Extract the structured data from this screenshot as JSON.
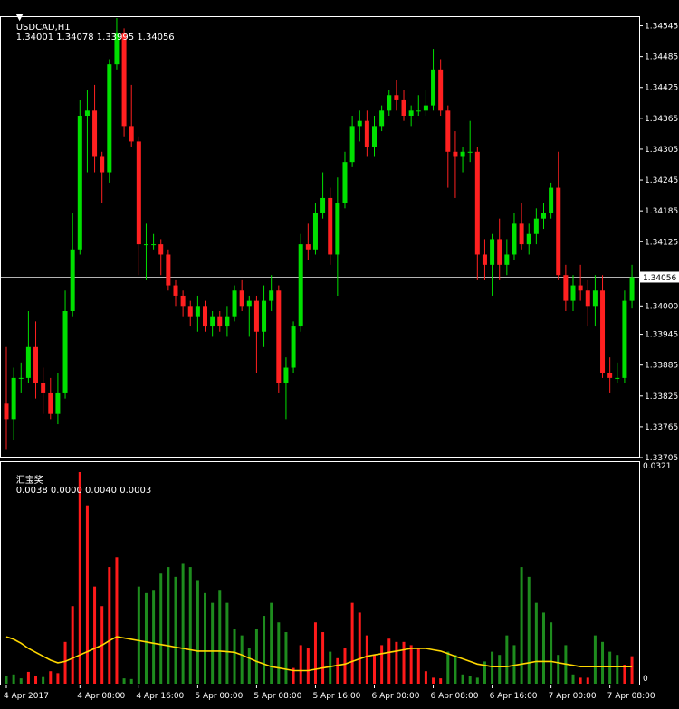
{
  "header": {
    "symbol": "USDCAD,H1",
    "ohlc": "1.34001 1.34078 1.33995 1.34056"
  },
  "indicator": {
    "title": "汇宝奖",
    "values": "0.0038 0.0000 0.0040 0.0003",
    "scale_max": "0.0321",
    "scale_zero": "0"
  },
  "colors": {
    "background": "#000000",
    "bull": "#00e000",
    "bear": "#ff2020",
    "bull_hist": "#1e8c1e",
    "bear_hist": "#ff1a1a",
    "signal": "#ffd700",
    "price_line": "#b4b4b4"
  },
  "chart_data": [
    {
      "type": "candlestick",
      "symbol": "USDCAD",
      "timeframe": "H1",
      "current_price": 1.34056,
      "current_price_label": "1.34056",
      "ylim": [
        1.33705,
        1.3456
      ],
      "y_ticks": [
        {
          "value": 1.34545,
          "label": "1.34545"
        },
        {
          "value": 1.34485,
          "label": "1.34485"
        },
        {
          "value": 1.34425,
          "label": "1.34425"
        },
        {
          "value": 1.34365,
          "label": "1.34365"
        },
        {
          "value": 1.34305,
          "label": "1.34305"
        },
        {
          "value": 1.34245,
          "label": "1.34245"
        },
        {
          "value": 1.34185,
          "label": "1.34185"
        },
        {
          "value": 1.34125,
          "label": "1.34125"
        },
        {
          "value": 1.34,
          "label": "1.34000"
        },
        {
          "value": 1.33945,
          "label": "1.33945"
        },
        {
          "value": 1.33885,
          "label": "1.33885"
        },
        {
          "value": 1.33825,
          "label": "1.33825"
        },
        {
          "value": 1.33765,
          "label": "1.33765"
        },
        {
          "value": 1.33705,
          "label": "1.33705"
        }
      ],
      "x_ticks": [
        {
          "index": 0,
          "label": "4 Apr 2017"
        },
        {
          "index": 10,
          "label": "4 Apr 08:00"
        },
        {
          "index": 18,
          "label": "4 Apr 16:00"
        },
        {
          "index": 26,
          "label": "5 Apr 00:00"
        },
        {
          "index": 34,
          "label": "5 Apr 08:00"
        },
        {
          "index": 42,
          "label": "5 Apr 16:00"
        },
        {
          "index": 50,
          "label": "6 Apr 00:00"
        },
        {
          "index": 58,
          "label": "6 Apr 08:00"
        },
        {
          "index": 66,
          "label": "6 Apr 16:00"
        },
        {
          "index": 74,
          "label": "7 Apr 00:00"
        },
        {
          "index": 82,
          "label": "7 Apr 08:00"
        }
      ],
      "candles": [
        {
          "o": 1.3381,
          "h": 1.3392,
          "l": 1.3372,
          "c": 1.3378
        },
        {
          "o": 1.3378,
          "h": 1.3388,
          "l": 1.3374,
          "c": 1.3386
        },
        {
          "o": 1.3386,
          "h": 1.3389,
          "l": 1.3383,
          "c": 1.3386
        },
        {
          "o": 1.3386,
          "h": 1.3399,
          "l": 1.3385,
          "c": 1.3392
        },
        {
          "o": 1.3392,
          "h": 1.3397,
          "l": 1.3382,
          "c": 1.3385
        },
        {
          "o": 1.3385,
          "h": 1.3388,
          "l": 1.3379,
          "c": 1.3383
        },
        {
          "o": 1.3383,
          "h": 1.3386,
          "l": 1.3378,
          "c": 1.3379
        },
        {
          "o": 1.3379,
          "h": 1.3387,
          "l": 1.3377,
          "c": 1.3383
        },
        {
          "o": 1.3383,
          "h": 1.3403,
          "l": 1.3382,
          "c": 1.3399
        },
        {
          "o": 1.3399,
          "h": 1.3418,
          "l": 1.3398,
          "c": 1.3411
        },
        {
          "o": 1.3411,
          "h": 1.344,
          "l": 1.341,
          "c": 1.3437
        },
        {
          "o": 1.3437,
          "h": 1.3442,
          "l": 1.3426,
          "c": 1.3438
        },
        {
          "o": 1.3438,
          "h": 1.3443,
          "l": 1.3426,
          "c": 1.3429
        },
        {
          "o": 1.3429,
          "h": 1.343,
          "l": 1.342,
          "c": 1.3426
        },
        {
          "o": 1.3426,
          "h": 1.3448,
          "l": 1.3424,
          "c": 1.3447
        },
        {
          "o": 1.3447,
          "h": 1.3456,
          "l": 1.3446,
          "c": 1.3453
        },
        {
          "o": 1.3453,
          "h": 1.3454,
          "l": 1.3433,
          "c": 1.3435
        },
        {
          "o": 1.3435,
          "h": 1.3443,
          "l": 1.3431,
          "c": 1.3432
        },
        {
          "o": 1.3432,
          "h": 1.3433,
          "l": 1.3406,
          "c": 1.3412
        },
        {
          "o": 1.3412,
          "h": 1.3416,
          "l": 1.3405,
          "c": 1.3412
        },
        {
          "o": 1.3412,
          "h": 1.3414,
          "l": 1.3411,
          "c": 1.3412
        },
        {
          "o": 1.3412,
          "h": 1.3413,
          "l": 1.3406,
          "c": 1.341
        },
        {
          "o": 1.341,
          "h": 1.3411,
          "l": 1.3403,
          "c": 1.3404
        },
        {
          "o": 1.3404,
          "h": 1.3405,
          "l": 1.34,
          "c": 1.3402
        },
        {
          "o": 1.3402,
          "h": 1.3403,
          "l": 1.3398,
          "c": 1.34
        },
        {
          "o": 1.34,
          "h": 1.3401,
          "l": 1.3396,
          "c": 1.3398
        },
        {
          "o": 1.3398,
          "h": 1.3402,
          "l": 1.3395,
          "c": 1.34
        },
        {
          "o": 1.34,
          "h": 1.3401,
          "l": 1.3395,
          "c": 1.3396
        },
        {
          "o": 1.3396,
          "h": 1.3399,
          "l": 1.3394,
          "c": 1.3398
        },
        {
          "o": 1.3398,
          "h": 1.3399,
          "l": 1.3395,
          "c": 1.3396
        },
        {
          "o": 1.3396,
          "h": 1.34,
          "l": 1.3394,
          "c": 1.3398
        },
        {
          "o": 1.3398,
          "h": 1.3404,
          "l": 1.3397,
          "c": 1.3403
        },
        {
          "o": 1.3403,
          "h": 1.3405,
          "l": 1.3399,
          "c": 1.34
        },
        {
          "o": 1.34,
          "h": 1.3402,
          "l": 1.3394,
          "c": 1.3401
        },
        {
          "o": 1.3401,
          "h": 1.3402,
          "l": 1.3387,
          "c": 1.3395
        },
        {
          "o": 1.3395,
          "h": 1.3404,
          "l": 1.3392,
          "c": 1.3401
        },
        {
          "o": 1.3401,
          "h": 1.3406,
          "l": 1.3399,
          "c": 1.3403
        },
        {
          "o": 1.3403,
          "h": 1.3404,
          "l": 1.3383,
          "c": 1.3385
        },
        {
          "o": 1.3385,
          "h": 1.339,
          "l": 1.3378,
          "c": 1.3388
        },
        {
          "o": 1.3388,
          "h": 1.3397,
          "l": 1.3387,
          "c": 1.3396
        },
        {
          "o": 1.3396,
          "h": 1.3414,
          "l": 1.3395,
          "c": 1.3412
        },
        {
          "o": 1.3412,
          "h": 1.3416,
          "l": 1.3409,
          "c": 1.3411
        },
        {
          "o": 1.3411,
          "h": 1.342,
          "l": 1.341,
          "c": 1.3418
        },
        {
          "o": 1.3418,
          "h": 1.3426,
          "l": 1.3417,
          "c": 1.3421
        },
        {
          "o": 1.3421,
          "h": 1.3423,
          "l": 1.3408,
          "c": 1.341
        },
        {
          "o": 1.341,
          "h": 1.3425,
          "l": 1.3402,
          "c": 1.342
        },
        {
          "o": 1.342,
          "h": 1.343,
          "l": 1.3419,
          "c": 1.3428
        },
        {
          "o": 1.3428,
          "h": 1.3437,
          "l": 1.3427,
          "c": 1.3435
        },
        {
          "o": 1.3435,
          "h": 1.3438,
          "l": 1.3432,
          "c": 1.3436
        },
        {
          "o": 1.3436,
          "h": 1.3438,
          "l": 1.3429,
          "c": 1.3431
        },
        {
          "o": 1.3431,
          "h": 1.3437,
          "l": 1.3429,
          "c": 1.3435
        },
        {
          "o": 1.3435,
          "h": 1.3439,
          "l": 1.3434,
          "c": 1.3438
        },
        {
          "o": 1.3438,
          "h": 1.3442,
          "l": 1.3437,
          "c": 1.3441
        },
        {
          "o": 1.3441,
          "h": 1.3444,
          "l": 1.3438,
          "c": 1.344
        },
        {
          "o": 1.344,
          "h": 1.3442,
          "l": 1.3436,
          "c": 1.3437
        },
        {
          "o": 1.3437,
          "h": 1.3439,
          "l": 1.3435,
          "c": 1.3438
        },
        {
          "o": 1.3438,
          "h": 1.3441,
          "l": 1.3437,
          "c": 1.3438
        },
        {
          "o": 1.3438,
          "h": 1.3442,
          "l": 1.3437,
          "c": 1.3439
        },
        {
          "o": 1.3439,
          "h": 1.345,
          "l": 1.3438,
          "c": 1.3446
        },
        {
          "o": 1.3446,
          "h": 1.3448,
          "l": 1.3437,
          "c": 1.3438
        },
        {
          "o": 1.3438,
          "h": 1.3439,
          "l": 1.3423,
          "c": 1.343
        },
        {
          "o": 1.343,
          "h": 1.3434,
          "l": 1.3421,
          "c": 1.3429
        },
        {
          "o": 1.3429,
          "h": 1.3431,
          "l": 1.3426,
          "c": 1.343
        },
        {
          "o": 1.343,
          "h": 1.3436,
          "l": 1.3428,
          "c": 1.343
        },
        {
          "o": 1.343,
          "h": 1.3431,
          "l": 1.3405,
          "c": 1.341
        },
        {
          "o": 1.341,
          "h": 1.3413,
          "l": 1.3405,
          "c": 1.3408
        },
        {
          "o": 1.3408,
          "h": 1.3414,
          "l": 1.3402,
          "c": 1.3413
        },
        {
          "o": 1.3413,
          "h": 1.3417,
          "l": 1.3405,
          "c": 1.3408
        },
        {
          "o": 1.3408,
          "h": 1.3413,
          "l": 1.3406,
          "c": 1.341
        },
        {
          "o": 1.341,
          "h": 1.3418,
          "l": 1.3409,
          "c": 1.3416
        },
        {
          "o": 1.3416,
          "h": 1.342,
          "l": 1.3411,
          "c": 1.3412
        },
        {
          "o": 1.3412,
          "h": 1.3416,
          "l": 1.341,
          "c": 1.3414
        },
        {
          "o": 1.3414,
          "h": 1.3419,
          "l": 1.3412,
          "c": 1.3417
        },
        {
          "o": 1.3417,
          "h": 1.342,
          "l": 1.3415,
          "c": 1.3418
        },
        {
          "o": 1.3418,
          "h": 1.3424,
          "l": 1.3417,
          "c": 1.3423
        },
        {
          "o": 1.3423,
          "h": 1.343,
          "l": 1.3405,
          "c": 1.3406
        },
        {
          "o": 1.3406,
          "h": 1.3408,
          "l": 1.3399,
          "c": 1.3401
        },
        {
          "o": 1.3401,
          "h": 1.3406,
          "l": 1.3399,
          "c": 1.3404
        },
        {
          "o": 1.3404,
          "h": 1.3408,
          "l": 1.3401,
          "c": 1.3403
        },
        {
          "o": 1.3403,
          "h": 1.3405,
          "l": 1.3396,
          "c": 1.34
        },
        {
          "o": 1.34,
          "h": 1.3406,
          "l": 1.3396,
          "c": 1.3403
        },
        {
          "o": 1.3403,
          "h": 1.3406,
          "l": 1.3386,
          "c": 1.3387
        },
        {
          "o": 1.3387,
          "h": 1.339,
          "l": 1.3383,
          "c": 1.3386
        },
        {
          "o": 1.3386,
          "h": 1.3389,
          "l": 1.3385,
          "c": 1.3386
        },
        {
          "o": 1.3386,
          "h": 1.3403,
          "l": 1.3385,
          "c": 1.3401
        },
        {
          "o": 1.3401,
          "h": 1.3408,
          "l": 1.33995,
          "c": 1.34056
        }
      ]
    },
    {
      "type": "bar",
      "indicator": "汇宝奖",
      "ylim": [
        0,
        0.0321
      ],
      "bars": [
        {
          "v": 0.0008,
          "dir": "up"
        },
        {
          "v": 0.001,
          "dir": "up"
        },
        {
          "v": 0.0004,
          "dir": "up"
        },
        {
          "v": 0.0014,
          "dir": "down"
        },
        {
          "v": 0.0008,
          "dir": "down"
        },
        {
          "v": 0.0006,
          "dir": "up"
        },
        {
          "v": 0.0015,
          "dir": "down"
        },
        {
          "v": 0.0012,
          "dir": "down"
        },
        {
          "v": 0.006,
          "dir": "down"
        },
        {
          "v": 0.0115,
          "dir": "down"
        },
        {
          "v": 0.0321,
          "dir": "down"
        },
        {
          "v": 0.027,
          "dir": "down"
        },
        {
          "v": 0.0145,
          "dir": "down"
        },
        {
          "v": 0.0115,
          "dir": "down"
        },
        {
          "v": 0.0175,
          "dir": "down"
        },
        {
          "v": 0.019,
          "dir": "down"
        },
        {
          "v": 0.0004,
          "dir": "up"
        },
        {
          "v": 0.0003,
          "dir": "up"
        },
        {
          "v": 0.0145,
          "dir": "up"
        },
        {
          "v": 0.0135,
          "dir": "up"
        },
        {
          "v": 0.014,
          "dir": "up"
        },
        {
          "v": 0.0165,
          "dir": "up"
        },
        {
          "v": 0.0175,
          "dir": "up"
        },
        {
          "v": 0.016,
          "dir": "up"
        },
        {
          "v": 0.018,
          "dir": "up"
        },
        {
          "v": 0.0175,
          "dir": "up"
        },
        {
          "v": 0.0155,
          "dir": "up"
        },
        {
          "v": 0.0135,
          "dir": "up"
        },
        {
          "v": 0.012,
          "dir": "up"
        },
        {
          "v": 0.014,
          "dir": "up"
        },
        {
          "v": 0.012,
          "dir": "up"
        },
        {
          "v": 0.008,
          "dir": "up"
        },
        {
          "v": 0.007,
          "dir": "up"
        },
        {
          "v": 0.005,
          "dir": "up"
        },
        {
          "v": 0.008,
          "dir": "up"
        },
        {
          "v": 0.01,
          "dir": "up"
        },
        {
          "v": 0.012,
          "dir": "up"
        },
        {
          "v": 0.009,
          "dir": "up"
        },
        {
          "v": 0.0075,
          "dir": "up"
        },
        {
          "v": 0.002,
          "dir": "down"
        },
        {
          "v": 0.0055,
          "dir": "down"
        },
        {
          "v": 0.005,
          "dir": "down"
        },
        {
          "v": 0.009,
          "dir": "down"
        },
        {
          "v": 0.0075,
          "dir": "down"
        },
        {
          "v": 0.0045,
          "dir": "up"
        },
        {
          "v": 0.0035,
          "dir": "down"
        },
        {
          "v": 0.005,
          "dir": "down"
        },
        {
          "v": 0.012,
          "dir": "down"
        },
        {
          "v": 0.0105,
          "dir": "down"
        },
        {
          "v": 0.007,
          "dir": "down"
        },
        {
          "v": 0.004,
          "dir": "down"
        },
        {
          "v": 0.0055,
          "dir": "down"
        },
        {
          "v": 0.0065,
          "dir": "down"
        },
        {
          "v": 0.006,
          "dir": "down"
        },
        {
          "v": 0.006,
          "dir": "down"
        },
        {
          "v": 0.0055,
          "dir": "down"
        },
        {
          "v": 0.005,
          "dir": "down"
        },
        {
          "v": 0.0015,
          "dir": "down"
        },
        {
          "v": 0.0005,
          "dir": "down"
        },
        {
          "v": 0.0004,
          "dir": "down"
        },
        {
          "v": 0.0045,
          "dir": "up"
        },
        {
          "v": 0.004,
          "dir": "up"
        },
        {
          "v": 0.001,
          "dir": "up"
        },
        {
          "v": 0.0008,
          "dir": "up"
        },
        {
          "v": 0.0005,
          "dir": "up"
        },
        {
          "v": 0.003,
          "dir": "up"
        },
        {
          "v": 0.0045,
          "dir": "up"
        },
        {
          "v": 0.004,
          "dir": "up"
        },
        {
          "v": 0.007,
          "dir": "up"
        },
        {
          "v": 0.0055,
          "dir": "up"
        },
        {
          "v": 0.0175,
          "dir": "up"
        },
        {
          "v": 0.016,
          "dir": "up"
        },
        {
          "v": 0.012,
          "dir": "up"
        },
        {
          "v": 0.0105,
          "dir": "up"
        },
        {
          "v": 0.009,
          "dir": "up"
        },
        {
          "v": 0.004,
          "dir": "up"
        },
        {
          "v": 0.0055,
          "dir": "up"
        },
        {
          "v": 0.001,
          "dir": "up"
        },
        {
          "v": 0.0005,
          "dir": "down"
        },
        {
          "v": 0.0005,
          "dir": "down"
        },
        {
          "v": 0.007,
          "dir": "up"
        },
        {
          "v": 0.006,
          "dir": "up"
        },
        {
          "v": 0.0045,
          "dir": "up"
        },
        {
          "v": 0.004,
          "dir": "up"
        },
        {
          "v": 0.0025,
          "dir": "down"
        },
        {
          "v": 0.0038,
          "dir": "down"
        }
      ],
      "signal": [
        0.0068,
        0.0064,
        0.0058,
        0.005,
        0.0044,
        0.0038,
        0.0032,
        0.0028,
        0.003,
        0.0035,
        0.004,
        0.0045,
        0.005,
        0.0055,
        0.0062,
        0.0068,
        0.0066,
        0.0064,
        0.0062,
        0.006,
        0.0058,
        0.0056,
        0.0054,
        0.0052,
        0.005,
        0.0048,
        0.0046,
        0.0046,
        0.0046,
        0.0046,
        0.0045,
        0.0044,
        0.004,
        0.0035,
        0.003,
        0.0026,
        0.0022,
        0.002,
        0.0018,
        0.0016,
        0.0016,
        0.0016,
        0.0018,
        0.002,
        0.0022,
        0.0024,
        0.0026,
        0.003,
        0.0034,
        0.0038,
        0.004,
        0.0042,
        0.0044,
        0.0046,
        0.0048,
        0.005,
        0.005,
        0.005,
        0.0048,
        0.0046,
        0.0042,
        0.0038,
        0.0034,
        0.003,
        0.0026,
        0.0024,
        0.0022,
        0.0022,
        0.0022,
        0.0024,
        0.0026,
        0.0028,
        0.003,
        0.003,
        0.003,
        0.0028,
        0.0026,
        0.0024,
        0.0022,
        0.0022,
        0.0022,
        0.0022,
        0.0022,
        0.0022,
        0.0022,
        0.0022
      ]
    }
  ]
}
